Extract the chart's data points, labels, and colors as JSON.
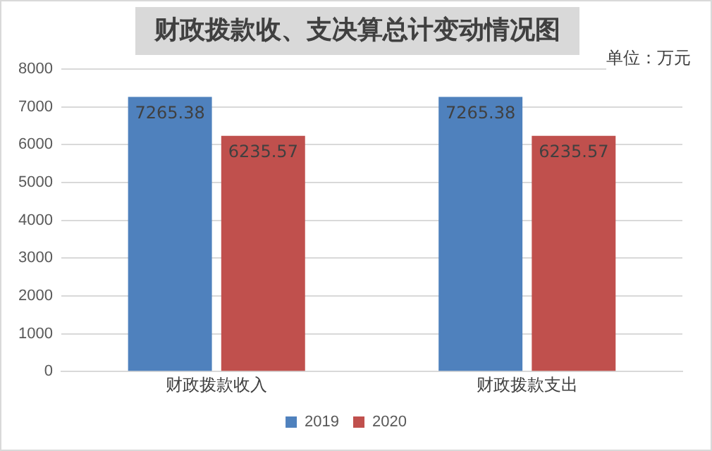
{
  "chart_data": {
    "type": "bar",
    "title": "财政拨款收、支决算总计变动情况图",
    "annotations": [
      "单位：万元"
    ],
    "categories": [
      "财政拨款收入",
      "财政拨款支出"
    ],
    "series": [
      {
        "name": "2019",
        "color": "#4f81bd",
        "values": [
          7265.38,
          7265.38
        ]
      },
      {
        "name": "2020",
        "color": "#c0504d",
        "values": [
          6235.57,
          6235.57
        ]
      }
    ],
    "ylim": [
      0,
      8000
    ],
    "yticks": [
      0,
      1000,
      2000,
      3000,
      4000,
      5000,
      6000,
      7000,
      8000
    ],
    "grid": "y",
    "legend": "bottom",
    "data_labels": true
  }
}
